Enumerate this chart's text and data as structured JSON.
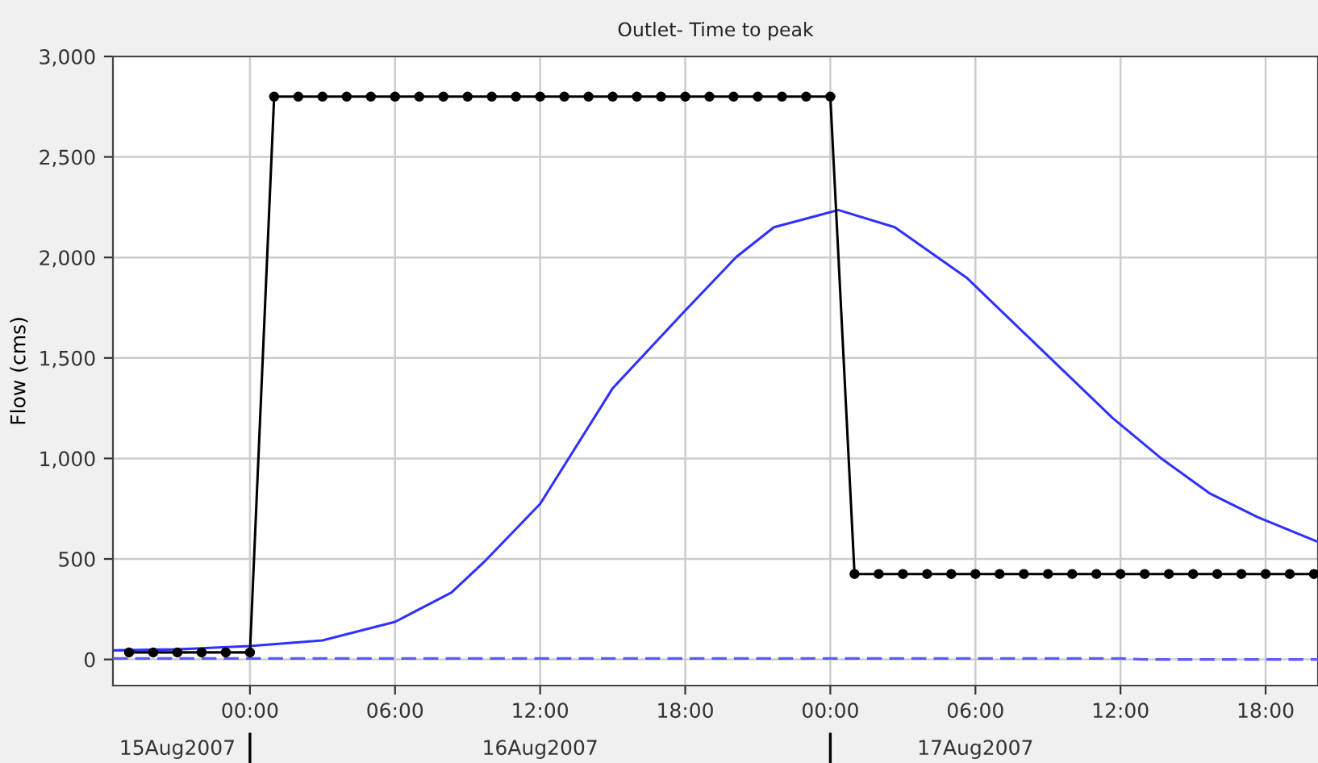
{
  "chart_data": {
    "type": "line",
    "title": "Outlet- Time to peak",
    "ylabel": "Flow (cms)",
    "xlim": [
      "2007-08-15T18:20",
      "2007-08-17T20:10"
    ],
    "ylim": [
      -130,
      3000
    ],
    "yticks": [
      {
        "value": 0,
        "label": "0"
      },
      {
        "value": 500,
        "label": "500"
      },
      {
        "value": 1000,
        "label": "1,000"
      },
      {
        "value": 1500,
        "label": "1,500"
      },
      {
        "value": 2000,
        "label": "2,000"
      },
      {
        "value": 2500,
        "label": "2,500"
      },
      {
        "value": 3000,
        "label": "3,000"
      }
    ],
    "xticks": [
      {
        "value": "2007-08-16T00:00",
        "label": "00:00"
      },
      {
        "value": "2007-08-16T06:00",
        "label": "06:00"
      },
      {
        "value": "2007-08-16T12:00",
        "label": "12:00"
      },
      {
        "value": "2007-08-16T18:00",
        "label": "18:00"
      },
      {
        "value": "2007-08-17T00:00",
        "label": "00:00"
      },
      {
        "value": "2007-08-17T06:00",
        "label": "06:00"
      },
      {
        "value": "2007-08-17T12:00",
        "label": "12:00"
      },
      {
        "value": "2007-08-17T18:00",
        "label": "18:00"
      }
    ],
    "x2ticks": [
      {
        "value": "2007-08-15T21:00",
        "label": "15Aug2007"
      },
      {
        "value": "2007-08-16T00:00",
        "label": null
      },
      {
        "value": "2007-08-16T12:00",
        "label": "16Aug2007"
      },
      {
        "value": "2007-08-17T00:00",
        "label": null
      },
      {
        "value": "2007-08-17T06:00",
        "label": "17Aug2007"
      }
    ],
    "x2lim": [
      "2007-08-15T18:20",
      "2007-08-17T20:10"
    ],
    "grid": true,
    "series": [
      {
        "color": "#000000",
        "marker": "circle",
        "line_style": "solid",
        "x": [
          "2007-08-15T19:00",
          "2007-08-15T20:00",
          "2007-08-15T21:00",
          "2007-08-15T22:00",
          "2007-08-15T23:00",
          "2007-08-16T00:00",
          "2007-08-16T01:00",
          "2007-08-16T02:00",
          "2007-08-16T03:00",
          "2007-08-16T04:00",
          "2007-08-16T05:00",
          "2007-08-16T06:00",
          "2007-08-16T07:00",
          "2007-08-16T08:00",
          "2007-08-16T09:00",
          "2007-08-16T10:00",
          "2007-08-16T11:00",
          "2007-08-16T12:00",
          "2007-08-16T13:00",
          "2007-08-16T14:00",
          "2007-08-16T15:00",
          "2007-08-16T16:00",
          "2007-08-16T17:00",
          "2007-08-16T18:00",
          "2007-08-16T19:00",
          "2007-08-16T20:00",
          "2007-08-16T21:00",
          "2007-08-16T22:00",
          "2007-08-16T23:00",
          "2007-08-17T00:00",
          "2007-08-17T01:00",
          "2007-08-17T02:00",
          "2007-08-17T03:00",
          "2007-08-17T04:00",
          "2007-08-17T05:00",
          "2007-08-17T06:00",
          "2007-08-17T07:00",
          "2007-08-17T08:00",
          "2007-08-17T09:00",
          "2007-08-17T10:00",
          "2007-08-17T11:00",
          "2007-08-17T12:00",
          "2007-08-17T13:00",
          "2007-08-17T14:00",
          "2007-08-17T15:00",
          "2007-08-17T16:00",
          "2007-08-17T17:00",
          "2007-08-17T18:00",
          "2007-08-17T19:00",
          "2007-08-17T20:00"
        ],
        "values": [
          35,
          35,
          35,
          35,
          35,
          35,
          2800,
          2800,
          2800,
          2800,
          2800,
          2800,
          2800,
          2800,
          2800,
          2800,
          2800,
          2800,
          2800,
          2800,
          2800,
          2800,
          2800,
          2800,
          2800,
          2800,
          2800,
          2800,
          2800,
          2800,
          425,
          425,
          425,
          425,
          425,
          425,
          425,
          425,
          425,
          425,
          425,
          425,
          425,
          425,
          425,
          425,
          425,
          425,
          425,
          425
        ]
      },
      {
        "color": "#3030ff",
        "marker": "none",
        "line_style": "solid",
        "x": [
          "2007-08-15T18:20",
          "2007-08-15T21:00",
          "2007-08-16T00:00",
          "2007-08-16T03:00",
          "2007-08-16T06:00",
          "2007-08-16T08:20",
          "2007-08-16T09:40",
          "2007-08-16T12:00",
          "2007-08-16T15:00",
          "2007-08-16T18:00",
          "2007-08-16T20:07",
          "2007-08-16T21:40",
          "2007-08-17T00:20",
          "2007-08-17T02:40",
          "2007-08-17T05:40",
          "2007-08-17T08:40",
          "2007-08-17T11:40",
          "2007-08-17T13:40",
          "2007-08-17T15:40",
          "2007-08-17T17:40",
          "2007-08-17T20:10"
        ],
        "values": [
          45,
          50,
          67,
          95,
          187,
          333,
          483,
          774,
          1349,
          1736,
          2003,
          2150,
          2236,
          2150,
          1896,
          1549,
          1202,
          1002,
          828,
          708,
          585
        ]
      },
      {
        "color": "#5a5aff",
        "marker": "none",
        "line_style": "dashed",
        "x": [
          "2007-08-15T18:20",
          "2007-08-17T12:00",
          "2007-08-17T13:00",
          "2007-08-17T20:10"
        ],
        "values": [
          5,
          5,
          0,
          0
        ]
      }
    ]
  }
}
